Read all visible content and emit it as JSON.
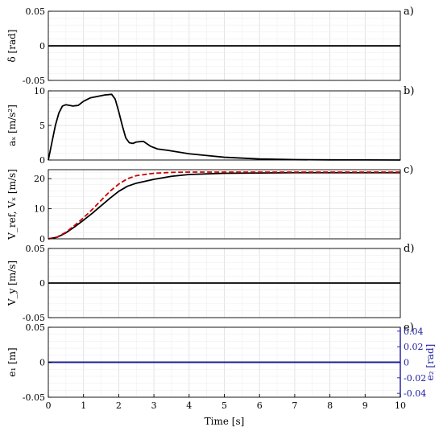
{
  "chart_data": [
    {
      "type": "line",
      "panel_label": "a)",
      "ylabel": "δ [rad]",
      "xlim": [
        0,
        10
      ],
      "ylim": [
        -0.05,
        0.05
      ],
      "yticks": [
        "0.05",
        "0",
        "-0.05"
      ],
      "grid": true,
      "series": [
        {
          "color": "#000000",
          "style": "solid",
          "x": [
            0,
            10
          ],
          "y": [
            0,
            0
          ]
        }
      ]
    },
    {
      "type": "line",
      "panel_label": "b)",
      "ylabel": "aₓ [m/s²]",
      "xlim": [
        0,
        10
      ],
      "ylim": [
        0,
        10
      ],
      "yticks": [
        "10",
        "5",
        "0"
      ],
      "grid": true,
      "series": [
        {
          "color": "#000000",
          "style": "solid",
          "x": [
            0,
            0.1,
            0.2,
            0.3,
            0.4,
            0.5,
            0.7,
            0.85,
            1.0,
            1.2,
            1.4,
            1.6,
            1.8,
            1.9,
            2.0,
            2.1,
            2.2,
            2.3,
            2.4,
            2.5,
            2.7,
            2.9,
            3.1,
            3.4,
            4.0,
            5.0,
            6.0,
            7.0,
            8.0,
            9.0,
            10.0
          ],
          "y": [
            0,
            2.5,
            5.0,
            6.8,
            7.8,
            8.0,
            7.8,
            7.9,
            8.5,
            9.0,
            9.2,
            9.4,
            9.5,
            8.8,
            7.0,
            5.0,
            3.2,
            2.5,
            2.4,
            2.6,
            2.7,
            2.0,
            1.6,
            1.4,
            0.9,
            0.4,
            0.15,
            0.05,
            0.02,
            0.01,
            0.0
          ]
        }
      ]
    },
    {
      "type": "line",
      "panel_label": "c)",
      "ylabel": "V_ref, Vₓ [m/s]",
      "xlim": [
        0,
        10
      ],
      "ylim": [
        0,
        23
      ],
      "yticks": [
        "20",
        "10",
        "0"
      ],
      "grid": true,
      "series": [
        {
          "color": "#000000",
          "style": "solid",
          "x": [
            0,
            0.25,
            0.5,
            0.75,
            1.0,
            1.25,
            1.5,
            1.75,
            2.0,
            2.25,
            2.5,
            3.0,
            3.5,
            4.0,
            5.0,
            6.0,
            7.0,
            8.0,
            9.0,
            10.0
          ],
          "y": [
            0,
            0.5,
            2.0,
            4.0,
            6.2,
            8.5,
            11.0,
            13.5,
            15.8,
            17.5,
            18.5,
            19.8,
            20.8,
            21.4,
            21.8,
            21.9,
            22.0,
            22.0,
            22.0,
            22.0
          ]
        },
        {
          "color": "#cc0000",
          "style": "dashed",
          "x": [
            0,
            0.25,
            0.5,
            0.75,
            1.0,
            1.25,
            1.5,
            1.75,
            2.0,
            2.25,
            2.5,
            3.0,
            3.5,
            4.0,
            5.0,
            6.0,
            7.0,
            8.0,
            9.0,
            10.0
          ],
          "y": [
            0,
            0.6,
            2.2,
            4.5,
            7.0,
            9.8,
            12.8,
            15.8,
            18.2,
            20.0,
            21.0,
            21.8,
            22.1,
            22.2,
            22.2,
            22.2,
            22.2,
            22.2,
            22.2,
            22.2
          ]
        }
      ]
    },
    {
      "type": "line",
      "panel_label": "d)",
      "ylabel": "V_y [m/s]",
      "xlim": [
        0,
        10
      ],
      "ylim": [
        -0.05,
        0.05
      ],
      "yticks": [
        "0.05",
        "0",
        "-0.05"
      ],
      "grid": true,
      "series": [
        {
          "color": "#000000",
          "style": "solid",
          "x": [
            0,
            10
          ],
          "y": [
            0,
            0
          ]
        }
      ]
    },
    {
      "type": "line",
      "panel_label": "e)",
      "ylabel": "e₁ [m]",
      "ylabel_right": "e₂ [rad]",
      "xlabel": "Time [s]",
      "xlim": [
        0,
        10
      ],
      "ylim": [
        -0.05,
        0.05
      ],
      "ylim_right": [
        -0.045,
        0.045
      ],
      "yticks": [
        "0.05",
        "0",
        "-0.05"
      ],
      "yticks_right": [
        "0.04",
        "0.02",
        "0",
        "-0.02",
        "-0.04"
      ],
      "xticks": [
        "0",
        "1",
        "2",
        "3",
        "4",
        "5",
        "6",
        "7",
        "8",
        "9",
        "10"
      ],
      "grid": true,
      "series": [
        {
          "color": "#000000",
          "style": "solid",
          "axis": "left",
          "x": [
            0,
            10
          ],
          "y": [
            0,
            0
          ]
        },
        {
          "color": "#1a1aa0",
          "style": "solid",
          "axis": "right",
          "x": [
            0,
            10
          ],
          "y": [
            0,
            0
          ]
        }
      ]
    }
  ]
}
